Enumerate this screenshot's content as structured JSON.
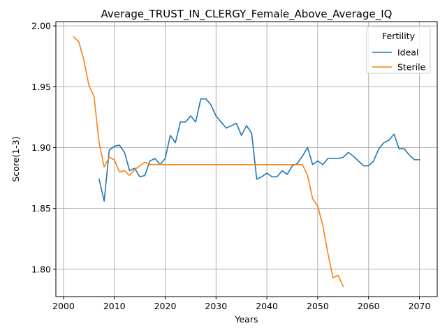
{
  "chart_data": {
    "type": "line",
    "title": "Average_TRUST_IN_CLERGY_Female_Above_Average_IQ",
    "xlabel": "Years",
    "ylabel": "Score(1-3)",
    "xlim": [
      1998.5,
      2073.5
    ],
    "ylim": [
      1.7775,
      2.0035
    ],
    "xticks": [
      2000,
      2010,
      2020,
      2030,
      2040,
      2050,
      2060,
      2070
    ],
    "xtick_labels": [
      "2000",
      "2010",
      "2020",
      "2030",
      "2040",
      "2050",
      "2060",
      "2070"
    ],
    "yticks": [
      1.8,
      1.85,
      1.9,
      1.95,
      2.0
    ],
    "ytick_labels": [
      "1.80",
      "1.85",
      "1.90",
      "1.95",
      "2.00"
    ],
    "grid": true,
    "legend": {
      "title": "Fertility",
      "placement": "upper-right"
    },
    "series": [
      {
        "name": "Ideal",
        "color": "#1f77b4",
        "x": [
          2007,
          2008,
          2009,
          2010,
          2011,
          2012,
          2013,
          2014,
          2015,
          2016,
          2017,
          2018,
          2019,
          2020,
          2021,
          2022,
          2023,
          2024,
          2025,
          2026,
          2027,
          2028,
          2029,
          2030,
          2031,
          2032,
          2033,
          2034,
          2035,
          2036,
          2037,
          2038,
          2039,
          2040,
          2041,
          2042,
          2043,
          2044,
          2045,
          2046,
          2047,
          2048,
          2049,
          2050,
          2051,
          2052,
          2053,
          2054,
          2055,
          2056,
          2057,
          2058,
          2059,
          2060,
          2061,
          2062,
          2063,
          2064,
          2065,
          2066,
          2067,
          2068,
          2069,
          2070
        ],
        "y": [
          1.874,
          1.856,
          1.898,
          1.901,
          1.902,
          1.896,
          1.881,
          1.883,
          1.876,
          1.877,
          1.889,
          1.891,
          1.886,
          1.891,
          1.91,
          1.904,
          1.921,
          1.921,
          1.926,
          1.921,
          1.94,
          1.94,
          1.935,
          1.926,
          1.921,
          1.916,
          1.918,
          1.92,
          1.91,
          1.918,
          1.912,
          1.874,
          1.876,
          1.879,
          1.876,
          1.876,
          1.881,
          1.878,
          1.885,
          1.887,
          1.893,
          1.9,
          1.886,
          1.889,
          1.886,
          1.891,
          1.891,
          1.891,
          1.892,
          1.896,
          1.893,
          1.889,
          1.885,
          1.885,
          1.889,
          1.899,
          1.904,
          1.906,
          1.911,
          1.899,
          1.899,
          1.894,
          1.89,
          1.89
        ]
      },
      {
        "name": "Sterile",
        "color": "#ff7f0e",
        "x": [
          2002,
          2003,
          2004,
          2005,
          2006,
          2007,
          2008,
          2009,
          2010,
          2011,
          2012,
          2013,
          2014,
          2015,
          2016,
          2017,
          2018,
          2019,
          2020,
          2021,
          2022,
          2023,
          2024,
          2025,
          2026,
          2027,
          2028,
          2029,
          2030,
          2031,
          2032,
          2033,
          2034,
          2035,
          2036,
          2037,
          2038,
          2039,
          2040,
          2041,
          2042,
          2043,
          2044,
          2045,
          2046,
          2047,
          2048,
          2049,
          2050,
          2051,
          2052,
          2053,
          2054,
          2055
        ],
        "y": [
          1.991,
          1.987,
          1.972,
          1.951,
          1.942,
          1.904,
          1.884,
          1.892,
          1.89,
          1.88,
          1.881,
          1.877,
          1.882,
          1.885,
          1.888,
          1.886,
          1.886,
          1.886,
          1.886,
          1.886,
          1.886,
          1.886,
          1.886,
          1.886,
          1.886,
          1.886,
          1.886,
          1.886,
          1.886,
          1.886,
          1.886,
          1.886,
          1.886,
          1.886,
          1.886,
          1.886,
          1.886,
          1.886,
          1.886,
          1.886,
          1.886,
          1.886,
          1.886,
          1.886,
          1.886,
          1.886,
          1.877,
          1.858,
          1.852,
          1.836,
          1.813,
          1.793,
          1.795,
          1.786
        ]
      }
    ]
  }
}
